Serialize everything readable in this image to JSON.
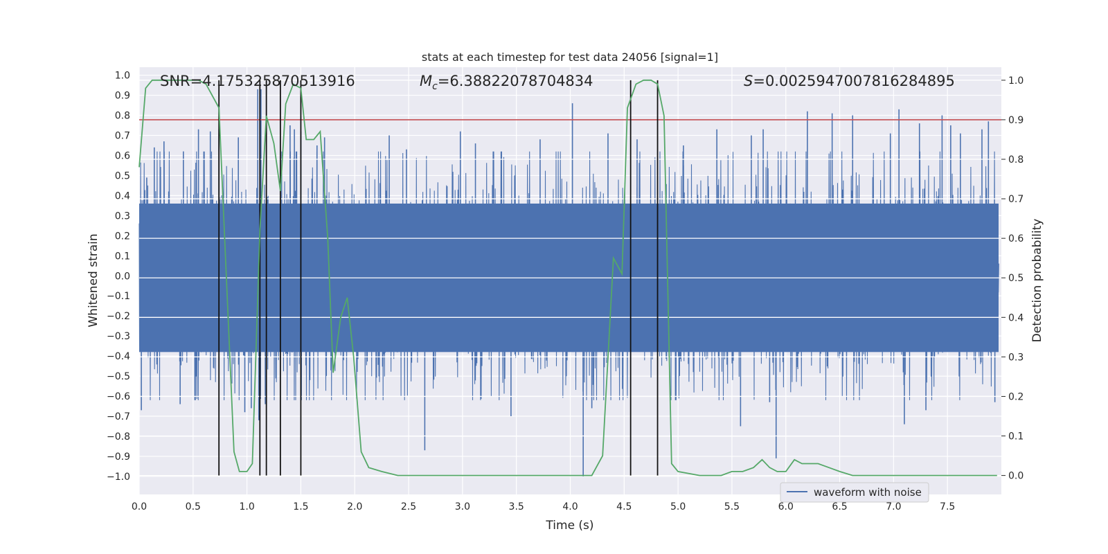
{
  "chart_data": {
    "type": "line",
    "title": "stats at each timestep for test data 24056 [signal=1]",
    "xlabel": "Time (s)",
    "ylabel_left": "Whitened strain",
    "ylabel_right": "Detection probability",
    "xlim": [
      0.0,
      8.0
    ],
    "ylim_left": [
      -1.09,
      1.04
    ],
    "ylim_right": [
      -0.048,
      1.033
    ],
    "x_ticks": [
      "0.0",
      "0.5",
      "1.0",
      "1.5",
      "2.0",
      "2.5",
      "3.0",
      "3.5",
      "4.0",
      "4.5",
      "5.0",
      "5.5",
      "6.0",
      "6.5",
      "7.0",
      "7.5"
    ],
    "y_ticks_left": [
      "1.0",
      "0.9",
      "0.8",
      "0.7",
      "0.6",
      "0.5",
      "0.4",
      "0.3",
      "0.2",
      "0.1",
      "0.0",
      "−0.1",
      "−0.2",
      "−0.3",
      "−0.4",
      "−0.5",
      "−0.6",
      "−0.7",
      "−0.8",
      "−0.9",
      "−1.0"
    ],
    "y_ticks_right": [
      "1.0",
      "0.9",
      "0.8",
      "0.7",
      "0.6",
      "0.5",
      "0.4",
      "0.3",
      "0.2",
      "0.1",
      "0.0"
    ],
    "annotations": {
      "snr": "SNR=4.175325870513916",
      "mc_symbol": "M",
      "mc_sub": "c",
      "mc_value": "=6.38822078704834",
      "s_symbol": "S",
      "s_value": "=0.0025947007816284895"
    },
    "legend": {
      "label": "waveform with noise",
      "location": "lower-right"
    },
    "threshold": {
      "value": 0.9,
      "axis": "right",
      "color": "#c44e52"
    },
    "vertical_markers": [
      0.74,
      1.12,
      1.18,
      1.31,
      1.5,
      4.56,
      4.81
    ],
    "waveform": {
      "name": "waveform with noise",
      "color": "#4c72b0",
      "sample_rate_hint": 2048,
      "spikes": [
        {
          "t": 0.02,
          "v": -0.67
        },
        {
          "t": 0.07,
          "v": 0.49
        },
        {
          "t": 0.14,
          "v": 0.64
        },
        {
          "t": 0.23,
          "v": 0.67
        },
        {
          "t": 0.38,
          "v": -0.64
        },
        {
          "t": 0.41,
          "v": 0.62
        },
        {
          "t": 0.55,
          "v": 0.73
        },
        {
          "t": 0.66,
          "v": 0.72
        },
        {
          "t": 0.74,
          "v": 0.73
        },
        {
          "t": 0.92,
          "v": 0.69
        },
        {
          "t": 0.98,
          "v": -0.68
        },
        {
          "t": 1.04,
          "v": -0.66
        },
        {
          "t": 1.1,
          "v": 0.93
        },
        {
          "t": 1.11,
          "v": -0.72
        },
        {
          "t": 1.13,
          "v": 0.93
        },
        {
          "t": 1.17,
          "v": -0.64
        },
        {
          "t": 1.4,
          "v": 0.75
        },
        {
          "t": 1.44,
          "v": 0.73
        },
        {
          "t": 1.5,
          "v": 0.72
        },
        {
          "t": 1.65,
          "v": 0.65
        },
        {
          "t": 1.72,
          "v": 0.69
        },
        {
          "t": 2.32,
          "v": 0.7
        },
        {
          "t": 2.48,
          "v": 0.63
        },
        {
          "t": 2.65,
          "v": -0.87
        },
        {
          "t": 2.98,
          "v": 0.72
        },
        {
          "t": 3.12,
          "v": 0.66
        },
        {
          "t": 3.45,
          "v": -0.7
        },
        {
          "t": 3.72,
          "v": 0.68
        },
        {
          "t": 4.02,
          "v": 0.86
        },
        {
          "t": 4.12,
          "v": -1.0
        },
        {
          "t": 4.2,
          "v": -0.66
        },
        {
          "t": 4.35,
          "v": 0.71
        },
        {
          "t": 4.62,
          "v": 0.68
        },
        {
          "t": 5.05,
          "v": 0.65
        },
        {
          "t": 5.36,
          "v": 0.73
        },
        {
          "t": 5.58,
          "v": -0.75
        },
        {
          "t": 5.68,
          "v": 0.7
        },
        {
          "t": 5.79,
          "v": 0.73
        },
        {
          "t": 5.85,
          "v": -0.63
        },
        {
          "t": 5.91,
          "v": -0.91
        },
        {
          "t": 6.2,
          "v": 0.82
        },
        {
          "t": 6.43,
          "v": 0.81
        },
        {
          "t": 6.62,
          "v": 0.8
        },
        {
          "t": 6.97,
          "v": 0.71
        },
        {
          "t": 7.05,
          "v": 0.83
        },
        {
          "t": 7.1,
          "v": -0.74
        },
        {
          "t": 7.24,
          "v": 0.76
        },
        {
          "t": 7.3,
          "v": -0.67
        },
        {
          "t": 7.45,
          "v": 0.8
        },
        {
          "t": 7.53,
          "v": 0.75
        },
        {
          "t": 7.62,
          "v": 0.71
        },
        {
          "t": 7.82,
          "v": 0.73
        },
        {
          "t": 7.88,
          "v": 0.77
        },
        {
          "t": 7.94,
          "v": -0.63
        }
      ]
    },
    "detection_probability": {
      "name": "detection probability",
      "color": "#55a868",
      "x": [
        0.0,
        0.06,
        0.12,
        0.25,
        0.4,
        0.55,
        0.62,
        0.74,
        0.88,
        0.93,
        1.0,
        1.05,
        1.12,
        1.18,
        1.25,
        1.31,
        1.36,
        1.43,
        1.5,
        1.55,
        1.62,
        1.68,
        1.75,
        1.8,
        1.87,
        1.93,
        1.99,
        2.06,
        2.13,
        2.25,
        2.4,
        2.6,
        3.0,
        3.2,
        3.6,
        4.0,
        4.1,
        4.2,
        4.3,
        4.4,
        4.48,
        4.53,
        4.61,
        4.68,
        4.75,
        4.81,
        4.87,
        4.94,
        5.0,
        5.2,
        5.4,
        5.5,
        5.6,
        5.7,
        5.78,
        5.85,
        5.92,
        6.0,
        6.08,
        6.15,
        6.3,
        6.4,
        6.5,
        6.62,
        6.8,
        7.1,
        7.4,
        7.7,
        7.96
      ],
      "y": [
        0.78,
        0.98,
        1.0,
        1.0,
        1.0,
        1.0,
        0.99,
        0.93,
        0.06,
        0.01,
        0.01,
        0.03,
        0.62,
        0.91,
        0.84,
        0.72,
        0.94,
        0.99,
        0.98,
        0.85,
        0.85,
        0.87,
        0.6,
        0.26,
        0.4,
        0.45,
        0.3,
        0.06,
        0.02,
        0.01,
        0.0,
        0.0,
        0.0,
        0.0,
        0.0,
        0.0,
        0.0,
        0.0,
        0.05,
        0.55,
        0.51,
        0.93,
        0.99,
        1.0,
        1.0,
        0.99,
        0.91,
        0.03,
        0.01,
        0.0,
        0.0,
        0.01,
        0.01,
        0.02,
        0.04,
        0.02,
        0.01,
        0.01,
        0.04,
        0.03,
        0.03,
        0.02,
        0.01,
        0.0,
        0.0,
        0.0,
        0.0,
        0.0,
        0.0
      ]
    }
  }
}
